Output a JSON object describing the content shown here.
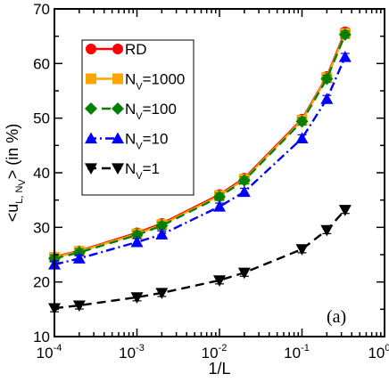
{
  "chart_data": {
    "type": "line",
    "xscale": "log",
    "xlim": [
      0.0001,
      1
    ],
    "ylim": [
      10,
      70
    ],
    "xlabel": "1/L",
    "ylabel": "<u_{L, N_V}> (in %)",
    "x_ticks": [
      {
        "base": "10",
        "exp": "-4"
      },
      {
        "base": "10",
        "exp": "-3"
      },
      {
        "base": "10",
        "exp": "-2"
      },
      {
        "base": "10",
        "exp": "-1"
      },
      {
        "base": "10",
        "exp": "0"
      }
    ],
    "y_ticks": [
      "10",
      "20",
      "30",
      "40",
      "50",
      "60",
      "70"
    ],
    "annotation": "(a)",
    "legend_position": "top-left",
    "x": [
      0.0001,
      0.0002,
      0.001,
      0.002,
      0.01,
      0.02,
      0.1,
      0.2,
      0.333
    ],
    "series": [
      {
        "name": "RD",
        "name_main": "RD",
        "name_sub": "",
        "name_rest": "",
        "color": "#ff0000",
        "marker": "circle",
        "dash": "solid",
        "values": [
          24.6,
          25.7,
          29.0,
          30.7,
          36.0,
          39.0,
          49.8,
          57.6,
          65.8
        ]
      },
      {
        "name": "N_V=1000",
        "name_main": "N",
        "name_sub": "V",
        "name_rest": "=1000",
        "color": "#ffa500",
        "marker": "square",
        "dash": "solid",
        "values": [
          24.5,
          25.6,
          28.8,
          30.5,
          35.8,
          38.8,
          49.6,
          57.4,
          65.5
        ]
      },
      {
        "name": "N_V=100",
        "name_main": "N",
        "name_sub": "V",
        "name_rest": "=100",
        "color": "#008000",
        "marker": "diamond",
        "dash": "dash",
        "values": [
          24.3,
          25.4,
          28.6,
          30.3,
          35.6,
          38.6,
          49.4,
          57.2,
          65.3
        ]
      },
      {
        "name": "N_V=10",
        "name_main": "N",
        "name_sub": "V",
        "name_rest": "=10",
        "color": "#0000ff",
        "marker": "triangle-up",
        "dash": "dashdot",
        "values": [
          23.2,
          24.3,
          27.3,
          28.7,
          33.8,
          36.5,
          46.3,
          53.5,
          61.2
        ]
      },
      {
        "name": "N_V=1",
        "name_main": "N",
        "name_sub": "V",
        "name_rest": "=1",
        "color": "#000000",
        "marker": "triangle-down",
        "dash": "dash",
        "values": [
          15.2,
          15.7,
          17.2,
          18.0,
          20.3,
          21.7,
          26.0,
          29.5,
          33.2
        ]
      }
    ]
  }
}
